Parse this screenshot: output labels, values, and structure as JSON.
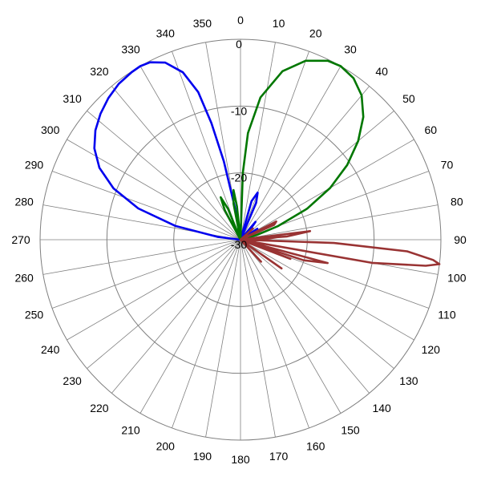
{
  "chart_data": {
    "type": "polar-line",
    "title": "",
    "angle_direction": "clockwise",
    "zero_at": "top",
    "angle_step": 10,
    "angle_labels": [
      "0",
      "10",
      "20",
      "30",
      "40",
      "50",
      "60",
      "70",
      "80",
      "90",
      "100",
      "110",
      "120",
      "130",
      "140",
      "150",
      "160",
      "170",
      "180",
      "190",
      "200",
      "210",
      "220",
      "230",
      "240",
      "250",
      "260",
      "270",
      "280",
      "290",
      "300",
      "310",
      "320",
      "330",
      "340",
      "350"
    ],
    "radial_range": [
      -30,
      0
    ],
    "radial_rings": [
      0,
      -10,
      -20,
      -30
    ],
    "radial_ring_labels": [
      "0",
      "-10",
      "-20",
      "-30"
    ],
    "colors": {
      "blue": "#0000ee",
      "green": "#007700",
      "red": "#993333",
      "grid": "#7f7f7f"
    },
    "series": [
      {
        "color": "#0000ee",
        "points": [
          [
            270,
            -30
          ],
          [
            277,
            -26.5
          ],
          [
            282,
            -20
          ],
          [
            287,
            -14
          ],
          [
            292,
            -9.5
          ],
          [
            297,
            -6.3
          ],
          [
            302,
            -4.2
          ],
          [
            307,
            -2.8
          ],
          [
            312,
            -1.8
          ],
          [
            317,
            -1.0
          ],
          [
            322,
            -0.4
          ],
          [
            327,
            -0.1
          ],
          [
            330,
            0
          ],
          [
            333,
            -0.2
          ],
          [
            337,
            -1.2
          ],
          [
            341,
            -3.5
          ],
          [
            344,
            -7
          ],
          [
            346,
            -12
          ],
          [
            348,
            -18
          ],
          [
            350,
            -25
          ],
          [
            352,
            -30
          ],
          [
            10,
            -30
          ],
          [
            16,
            -24
          ],
          [
            20,
            -22.5
          ],
          [
            23,
            -24
          ],
          [
            26,
            -30
          ],
          [
            35,
            -30
          ],
          [
            40,
            -26.5
          ],
          [
            44,
            -28
          ],
          [
            48,
            -30
          ],
          [
            53,
            -30
          ],
          [
            57,
            -27
          ],
          [
            62,
            -30
          ]
        ]
      },
      {
        "color": "#007700",
        "points": [
          [
            0,
            -30
          ],
          [
            2,
            -20
          ],
          [
            4,
            -14
          ],
          [
            8,
            -8.5
          ],
          [
            14,
            -4
          ],
          [
            20,
            -1.5
          ],
          [
            26,
            -0.2
          ],
          [
            30,
            0
          ],
          [
            35,
            -0.5
          ],
          [
            40,
            -1.8
          ],
          [
            45,
            -4
          ],
          [
            50,
            -7
          ],
          [
            55,
            -10.5
          ],
          [
            60,
            -14.5
          ],
          [
            65,
            -19
          ],
          [
            70,
            -24
          ],
          [
            74,
            -27.5
          ],
          [
            77,
            -30
          ],
          [
            85,
            -30
          ],
          [
            89,
            -27.5
          ],
          [
            93,
            -30
          ],
          [
            98,
            -30
          ],
          [
            103,
            -26.5
          ],
          [
            108,
            -30
          ],
          [
            330,
            -30
          ],
          [
            332,
            -25
          ],
          [
            335,
            -23
          ],
          [
            338,
            -25
          ],
          [
            341,
            -30
          ],
          [
            347,
            -30
          ],
          [
            349,
            -24.5
          ],
          [
            352,
            -22.5
          ],
          [
            354,
            -25
          ],
          [
            356,
            -30
          ]
        ]
      },
      {
        "color": "#993333",
        "points": [
          [
            76,
            -30
          ],
          [
            83,
            -19.5
          ],
          [
            86,
            -23
          ],
          [
            89,
            -30
          ],
          [
            84,
            -30
          ],
          [
            86,
            -24.5
          ],
          [
            88,
            -26
          ],
          [
            89,
            -30
          ],
          [
            89,
            -30
          ],
          [
            92,
            -16
          ],
          [
            94,
            -5
          ],
          [
            96,
            -1
          ],
          [
            97,
            0
          ],
          [
            98,
            -2
          ],
          [
            100,
            -10
          ],
          [
            102,
            -30
          ],
          [
            100,
            -30
          ],
          [
            105,
            -16.5
          ],
          [
            108,
            -20
          ],
          [
            110,
            -30
          ],
          [
            105,
            -30
          ],
          [
            111,
            -22
          ],
          [
            116,
            -30
          ],
          [
            116,
            -30
          ],
          [
            125,
            -22.5
          ],
          [
            133,
            -30
          ],
          [
            133,
            -30
          ],
          [
            137,
            -25.5
          ],
          [
            141,
            -30
          ],
          [
            40,
            -30
          ],
          [
            48,
            -27.5
          ],
          [
            55,
            -30
          ],
          [
            58,
            -30
          ],
          [
            63,
            -24
          ],
          [
            66,
            -24.5
          ],
          [
            70,
            -30
          ]
        ]
      }
    ]
  }
}
